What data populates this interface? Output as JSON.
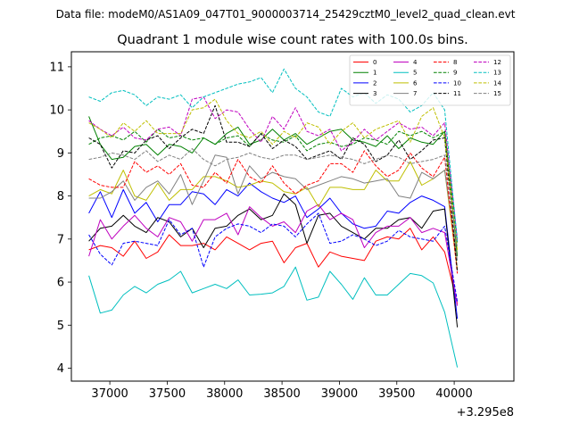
{
  "figure": {
    "suptitle": "Data file: modeM0/AS1A09_047T01_9000003714_25429cztM0_level2_quad_clean.evt"
  },
  "chart_data": {
    "type": "line",
    "title": "Quadrant 1 module wise count rates with 100.0s bins.",
    "xlabel": "",
    "ylabel": "",
    "x_offset_label": "+3.295e8",
    "x": [
      36817,
      36917,
      37017,
      37117,
      37217,
      37317,
      37417,
      37517,
      37617,
      37717,
      37817,
      37917,
      38017,
      38117,
      38217,
      38317,
      38417,
      38517,
      38617,
      38717,
      38817,
      38917,
      39017,
      39117,
      39217,
      39317,
      39417,
      39517,
      39617,
      39717,
      39817,
      39917,
      40027
    ],
    "xlim": [
      36665,
      40520
    ],
    "ylim": [
      3.7,
      11.35
    ],
    "xticks": [
      37000,
      37500,
      38000,
      38500,
      39000,
      39500,
      40000
    ],
    "yticks": [
      4,
      5,
      6,
      7,
      8,
      9,
      10,
      11
    ],
    "xtick_labels": [
      "37000",
      "37500",
      "38000",
      "38500",
      "39000",
      "39500",
      "40000"
    ],
    "ytick_labels": [
      "4",
      "5",
      "6",
      "7",
      "8",
      "9",
      "10",
      "11"
    ],
    "legend": {
      "position": "top-right",
      "columns": 4
    },
    "series": [
      {
        "name": "0",
        "color": "#ff0000",
        "dash": "solid",
        "values": [
          6.75,
          6.85,
          6.8,
          6.6,
          6.95,
          6.55,
          6.7,
          7.1,
          6.85,
          6.85,
          6.9,
          6.75,
          7.05,
          6.9,
          6.75,
          6.9,
          6.95,
          6.45,
          6.8,
          6.9,
          6.35,
          6.7,
          6.6,
          6.55,
          6.5,
          6.95,
          7.05,
          7.0,
          7.25,
          6.75,
          7.05,
          6.7,
          5.5
        ]
      },
      {
        "name": "1",
        "color": "#008000",
        "dash": "solid",
        "values": [
          9.85,
          9.2,
          8.85,
          8.9,
          9.15,
          9.2,
          8.95,
          9.2,
          9.15,
          9.0,
          9.35,
          9.2,
          9.45,
          9.6,
          9.2,
          9.3,
          9.55,
          9.3,
          9.45,
          9.2,
          9.35,
          9.5,
          9.55,
          9.3,
          9.25,
          9.15,
          9.4,
          9.1,
          9.35,
          9.25,
          9.2,
          9.5,
          6.6
        ]
      },
      {
        "name": "2",
        "color": "#0000ff",
        "dash": "solid",
        "values": [
          7.6,
          8.1,
          7.5,
          8.15,
          7.6,
          7.85,
          7.4,
          7.8,
          7.8,
          8.1,
          8.05,
          7.8,
          8.15,
          8.0,
          8.3,
          8.1,
          7.95,
          7.85,
          8.0,
          7.5,
          7.7,
          7.95,
          7.6,
          7.35,
          7.25,
          7.3,
          7.65,
          7.6,
          7.85,
          8.0,
          7.9,
          7.75,
          5.15
        ]
      },
      {
        "name": "3",
        "color": "#000000",
        "dash": "solid",
        "values": [
          6.95,
          7.25,
          7.3,
          7.55,
          7.3,
          7.15,
          7.5,
          7.4,
          7.05,
          7.25,
          6.8,
          7.25,
          7.3,
          7.55,
          7.7,
          7.45,
          7.55,
          8.05,
          7.8,
          6.9,
          7.55,
          7.6,
          7.3,
          7.15,
          7.0,
          7.25,
          7.25,
          7.45,
          7.5,
          7.25,
          7.65,
          7.7,
          4.95
        ]
      },
      {
        "name": "4",
        "color": "#bf00bf",
        "dash": "solid",
        "values": [
          6.6,
          7.45,
          7.0,
          7.3,
          7.55,
          7.25,
          7.05,
          7.5,
          7.4,
          6.95,
          7.45,
          7.45,
          7.6,
          7.1,
          7.75,
          7.5,
          7.3,
          7.4,
          7.15,
          7.65,
          7.8,
          7.45,
          7.6,
          7.45,
          6.8,
          7.15,
          7.3,
          7.3,
          7.5,
          7.15,
          7.25,
          7.15,
          5.45
        ]
      },
      {
        "name": "5",
        "color": "#00bfbf",
        "dash": "solid",
        "values": [
          6.15,
          5.28,
          5.35,
          5.7,
          5.9,
          5.75,
          5.95,
          6.05,
          6.25,
          5.75,
          5.85,
          5.95,
          5.85,
          6.05,
          5.7,
          5.72,
          5.75,
          5.9,
          6.35,
          5.58,
          5.65,
          6.25,
          5.95,
          5.6,
          6.1,
          5.7,
          5.7,
          5.95,
          6.2,
          6.15,
          5.98,
          5.3,
          4.02
        ]
      },
      {
        "name": "6",
        "color": "#bfbf00",
        "dash": "solid",
        "values": [
          8.0,
          8.15,
          8.05,
          8.6,
          8.0,
          7.9,
          8.3,
          7.9,
          8.15,
          8.15,
          8.45,
          8.45,
          8.35,
          8.2,
          8.25,
          8.35,
          8.3,
          8.1,
          8.05,
          8.2,
          7.75,
          8.2,
          8.2,
          8.15,
          8.15,
          8.6,
          8.35,
          8.35,
          8.8,
          8.25,
          8.4,
          8.6,
          6.3
        ]
      },
      {
        "name": "7",
        "color": "#808080",
        "dash": "solid",
        "values": [
          7.95,
          7.95,
          8.1,
          8.35,
          7.9,
          8.2,
          8.35,
          8.05,
          8.5,
          7.8,
          8.35,
          8.95,
          8.9,
          8.05,
          8.7,
          8.4,
          8.55,
          8.45,
          8.4,
          8.15,
          8.25,
          8.35,
          8.45,
          8.4,
          8.3,
          8.35,
          8.4,
          8.0,
          7.95,
          8.55,
          8.4,
          8.6,
          6.5
        ]
      },
      {
        "name": "8",
        "color": "#ff0000",
        "dash": "dashed",
        "values": [
          8.4,
          8.25,
          8.2,
          8.2,
          8.8,
          8.55,
          8.7,
          8.5,
          8.75,
          8.25,
          8.2,
          8.55,
          8.3,
          8.85,
          8.45,
          8.3,
          8.7,
          8.3,
          8.05,
          8.25,
          8.35,
          8.75,
          8.75,
          8.55,
          9.05,
          8.7,
          8.45,
          8.6,
          9.0,
          8.65,
          8.45,
          8.9,
          6.2
        ]
      },
      {
        "name": "9",
        "color": "#008000",
        "dash": "dashed",
        "values": [
          9.2,
          9.35,
          9.4,
          9.3,
          9.5,
          9.25,
          9.55,
          9.35,
          9.4,
          9.3,
          9.35,
          9.2,
          9.35,
          9.4,
          9.15,
          9.45,
          9.3,
          9.25,
          9.4,
          9.05,
          9.2,
          9.25,
          9.15,
          9.2,
          9.35,
          9.3,
          9.2,
          9.5,
          9.4,
          9.5,
          9.35,
          9.5,
          6.9
        ]
      },
      {
        "name": "10",
        "color": "#0000ff",
        "dash": "dashed",
        "values": [
          7.1,
          6.65,
          6.4,
          6.9,
          6.95,
          6.9,
          6.85,
          7.45,
          7.1,
          7.25,
          6.35,
          7.05,
          7.25,
          7.35,
          7.3,
          7.15,
          7.35,
          7.3,
          7.05,
          7.35,
          7.6,
          6.9,
          6.95,
          7.1,
          7.0,
          6.85,
          6.95,
          7.2,
          7.05,
          7.0,
          6.95,
          7.3,
          5.55
        ]
      },
      {
        "name": "11",
        "color": "#000000",
        "dash": "dashed",
        "values": [
          9.35,
          9.2,
          8.65,
          9.05,
          9.0,
          9.3,
          9.4,
          9.1,
          9.35,
          9.55,
          9.45,
          10.1,
          9.25,
          9.25,
          9.15,
          9.45,
          9.1,
          9.3,
          9.15,
          8.85,
          8.95,
          9.05,
          8.85,
          9.35,
          9.2,
          8.8,
          8.95,
          9.3,
          8.85,
          9.05,
          9.3,
          9.35,
          6.25
        ]
      },
      {
        "name": "12",
        "color": "#bf00bf",
        "dash": "dashed",
        "values": [
          9.75,
          9.55,
          9.4,
          9.6,
          9.35,
          9.3,
          9.55,
          9.6,
          9.4,
          10.25,
          10.3,
          9.8,
          10.0,
          9.95,
          9.55,
          9.25,
          9.85,
          9.55,
          10.05,
          9.5,
          9.4,
          9.55,
          9.05,
          9.25,
          9.55,
          9.3,
          9.5,
          9.7,
          9.55,
          9.6,
          9.4,
          9.7,
          7.0
        ]
      },
      {
        "name": "13",
        "color": "#00bfbf",
        "dash": "dashed",
        "values": [
          10.3,
          10.2,
          10.4,
          10.45,
          10.35,
          10.1,
          10.3,
          10.25,
          10.35,
          10.05,
          10.3,
          10.4,
          10.5,
          10.6,
          10.65,
          10.75,
          10.4,
          10.95,
          10.5,
          10.3,
          9.95,
          9.85,
          10.5,
          10.3,
          10.4,
          10.15,
          10.35,
          10.25,
          9.95,
          10.1,
          10.4,
          10.0,
          6.95
        ]
      },
      {
        "name": "14",
        "color": "#bfbf00",
        "dash": "dashed",
        "values": [
          9.7,
          9.55,
          9.35,
          9.7,
          9.5,
          9.75,
          9.45,
          9.45,
          9.45,
          10.0,
          10.05,
          10.25,
          9.75,
          9.45,
          9.35,
          9.5,
          9.2,
          9.5,
          9.35,
          9.7,
          9.6,
          9.2,
          9.5,
          9.7,
          9.35,
          9.55,
          9.65,
          9.75,
          9.25,
          9.85,
          10.05,
          9.35,
          6.75
        ]
      },
      {
        "name": "15",
        "color": "#808080",
        "dash": "dashed",
        "values": [
          8.85,
          8.9,
          9.0,
          8.95,
          8.85,
          9.05,
          8.8,
          8.95,
          8.85,
          9.1,
          8.85,
          8.7,
          8.85,
          8.9,
          9.0,
          8.9,
          8.85,
          8.95,
          8.95,
          8.85,
          8.9,
          8.95,
          8.9,
          8.85,
          8.75,
          8.85,
          8.95,
          8.9,
          8.75,
          8.8,
          8.85,
          8.95,
          6.8
        ]
      }
    ]
  }
}
